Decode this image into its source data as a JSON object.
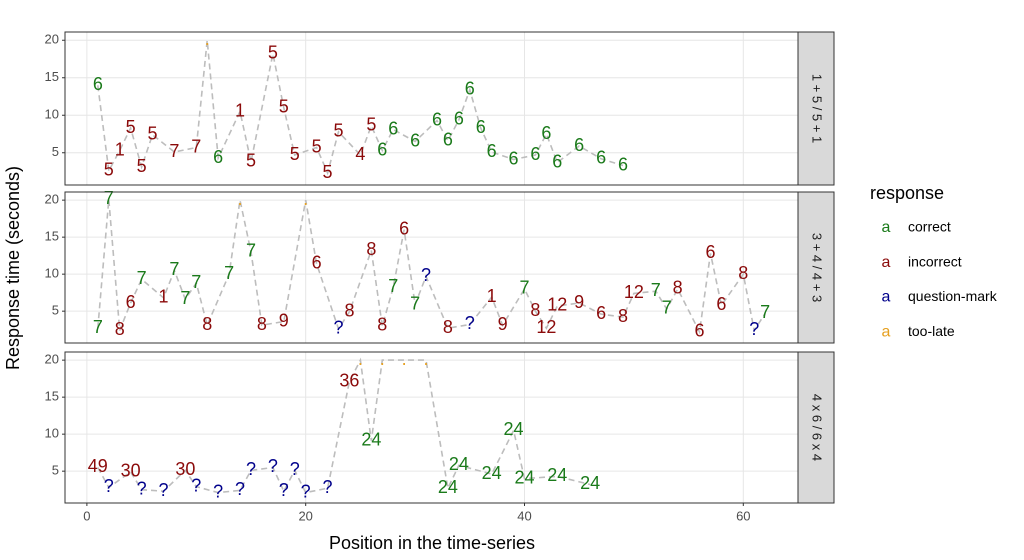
{
  "chart_data": {
    "type": "text-scatter",
    "x_label": "Position in the time-series",
    "y_label": "Response time (seconds)",
    "xlim": [
      -2,
      65
    ],
    "xticks": [
      0,
      20,
      40,
      60
    ],
    "ylim": [
      0.7,
      21.1
    ],
    "yticks": [
      5,
      10,
      15,
      20
    ],
    "grid": true,
    "legend": {
      "title": "response",
      "key": "a",
      "position": "right"
    },
    "levels": [
      {
        "name": "correct",
        "color": "#1a7a1a"
      },
      {
        "name": "incorrect",
        "color": "#8b0a0a"
      },
      {
        "name": "question-mark",
        "color": "#00008b"
      },
      {
        "name": "too-late",
        "color": "#e6a020"
      }
    ],
    "facets": [
      {
        "strip": "1 + 5 / 5 + 1",
        "x": [
          1,
          2,
          3,
          4,
          5,
          6,
          8,
          10,
          11,
          12,
          14,
          15,
          17,
          18,
          19,
          21,
          22,
          23,
          25,
          26,
          27,
          28,
          30,
          32,
          33,
          34,
          35,
          36,
          37,
          39,
          41,
          42,
          43,
          45,
          47,
          49
        ],
        "y": [
          14,
          2.6,
          5.3,
          8.3,
          3.1,
          7.4,
          5.1,
          5.7,
          20,
          4.3,
          10.5,
          3.8,
          18.2,
          11,
          4.7,
          5.7,
          2.3,
          7.8,
          4.7,
          8.6,
          5.3,
          8.1,
          6.5,
          9.3,
          6.6,
          9.4,
          13.4,
          8.3,
          5.1,
          4.1,
          4.7,
          7.5,
          3.7,
          5.9,
          4.2,
          3.3
        ],
        "labels": [
          "6",
          "5",
          "1",
          "5",
          "5",
          "5",
          "7",
          "7",
          ".",
          "6",
          "1",
          "5",
          "5",
          "5",
          "5",
          "5",
          "5",
          "5",
          "4",
          "5",
          "6",
          "6",
          "6",
          "6",
          "6",
          "6",
          "6",
          "6",
          "6",
          "6",
          "6",
          "6",
          "6",
          "6",
          "6",
          "6"
        ],
        "response": [
          "correct",
          "incorrect",
          "incorrect",
          "incorrect",
          "incorrect",
          "incorrect",
          "incorrect",
          "incorrect",
          "too-late",
          "correct",
          "incorrect",
          "incorrect",
          "incorrect",
          "incorrect",
          "incorrect",
          "incorrect",
          "incorrect",
          "incorrect",
          "incorrect",
          "incorrect",
          "correct",
          "correct",
          "correct",
          "correct",
          "correct",
          "correct",
          "correct",
          "correct",
          "correct",
          "correct",
          "correct",
          "correct",
          "correct",
          "correct",
          "correct",
          "correct"
        ]
      },
      {
        "strip": "3 + 4 / 4 + 3",
        "x": [
          1,
          2,
          3,
          4,
          5,
          7,
          8,
          9,
          10,
          11,
          13,
          14,
          15,
          16,
          18,
          20,
          21,
          23,
          24,
          26,
          27,
          28,
          29,
          30,
          31,
          33,
          35,
          37,
          38,
          40,
          41,
          42,
          43,
          45,
          47,
          49,
          50,
          52,
          53,
          54,
          56,
          57,
          58,
          60,
          61,
          62
        ],
        "y": [
          2.7,
          20.1,
          2.4,
          6.1,
          9.3,
          6.8,
          10.5,
          6.6,
          8.8,
          3.1,
          10,
          20,
          13,
          3.1,
          3.6,
          20,
          11.4,
          2.6,
          4.9,
          13.2,
          3,
          8.2,
          16,
          5.9,
          9.7,
          2.7,
          3.2,
          6.9,
          3.1,
          8,
          5,
          2.7,
          5.7,
          6.1,
          4.6,
          4.2,
          7.4,
          7.7,
          5.3,
          8,
          2.2,
          12.8,
          5.8,
          10,
          2.4,
          4.7
        ],
        "labels": [
          "7",
          "7",
          "8",
          "6",
          "7",
          "1",
          "7",
          "7",
          "7",
          "8",
          "7",
          ".",
          "7",
          "8",
          "9",
          ".",
          "6",
          "?",
          "8",
          "8",
          "8",
          "7",
          "6",
          "7",
          "?",
          "8",
          "?",
          "1",
          "9",
          "7",
          "8",
          "12",
          "12",
          "9",
          "6",
          "8",
          "12",
          "7",
          "7",
          "8",
          "6",
          "6",
          "6",
          "8",
          "?",
          "7"
        ],
        "response": [
          "correct",
          "correct",
          "incorrect",
          "incorrect",
          "correct",
          "incorrect",
          "correct",
          "correct",
          "correct",
          "incorrect",
          "correct",
          "too-late",
          "correct",
          "incorrect",
          "incorrect",
          "too-late",
          "incorrect",
          "question-mark",
          "incorrect",
          "incorrect",
          "incorrect",
          "correct",
          "incorrect",
          "correct",
          "question-mark",
          "incorrect",
          "question-mark",
          "incorrect",
          "incorrect",
          "correct",
          "incorrect",
          "incorrect",
          "incorrect",
          "incorrect",
          "incorrect",
          "incorrect",
          "incorrect",
          "correct",
          "correct",
          "incorrect",
          "incorrect",
          "incorrect",
          "incorrect",
          "incorrect",
          "question-mark",
          "correct"
        ]
      },
      {
        "strip": "4 x 6 / 6 x 4",
        "x": [
          1,
          2,
          4,
          5,
          7,
          9,
          10,
          12,
          14,
          15,
          17,
          18,
          19,
          20,
          22,
          24,
          25,
          26,
          27,
          29,
          31,
          33,
          34,
          37,
          39,
          40,
          43,
          46
        ],
        "y": [
          5.5,
          2.8,
          4.9,
          2.5,
          2.3,
          5.1,
          2.9,
          2.1,
          2.4,
          5.1,
          5.5,
          2.3,
          5.1,
          2.1,
          2.7,
          17.1,
          20,
          9.1,
          20,
          20,
          20,
          2.7,
          5.8,
          4.6,
          10.5,
          4,
          4.3,
          3.2
        ],
        "labels": [
          "49",
          "?",
          "30",
          "?",
          "?",
          "30",
          "?",
          "?",
          "?",
          "?",
          "?",
          "?",
          "?",
          "?",
          "?",
          "36",
          ".",
          "24",
          ".",
          ".",
          ".",
          "24",
          "24",
          "24",
          "24",
          "24",
          "24",
          "24"
        ],
        "response": [
          "incorrect",
          "question-mark",
          "incorrect",
          "question-mark",
          "question-mark",
          "incorrect",
          "question-mark",
          "question-mark",
          "question-mark",
          "question-mark",
          "question-mark",
          "question-mark",
          "question-mark",
          "question-mark",
          "question-mark",
          "incorrect",
          "too-late",
          "correct",
          "too-late",
          "too-late",
          "too-late",
          "correct",
          "correct",
          "correct",
          "correct",
          "correct",
          "correct",
          "correct"
        ]
      }
    ]
  }
}
